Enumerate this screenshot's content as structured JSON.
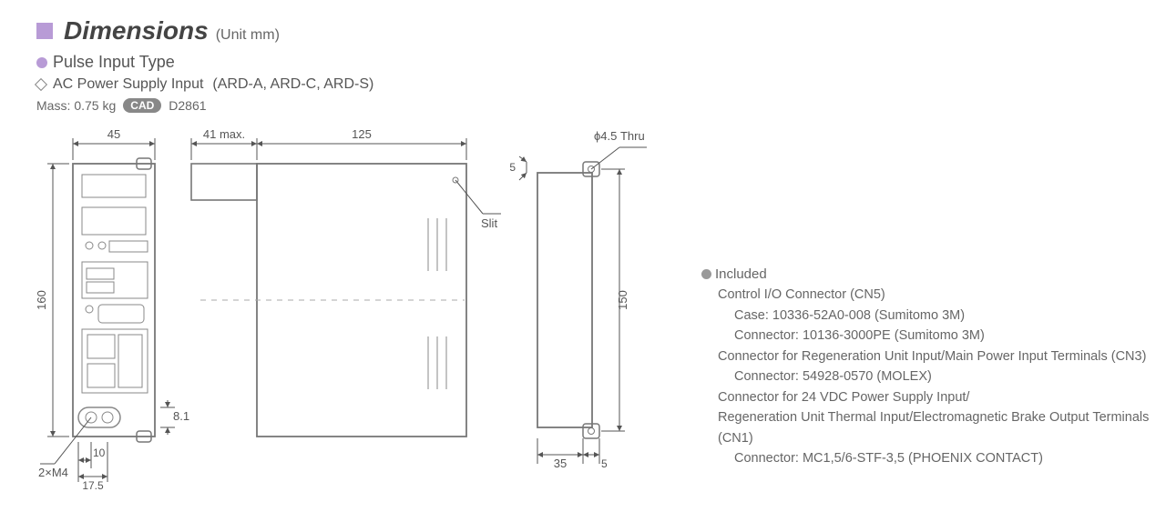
{
  "header": {
    "title": "Dimensions",
    "unit": "(Unit mm)"
  },
  "sub1": "Pulse Input Type",
  "sub2": {
    "label": "AC Power Supply Input",
    "models": "(ARD-A, ARD-C, ARD-S)"
  },
  "mass": {
    "label": "Mass:",
    "value": "0.75 kg",
    "cad": "CAD",
    "code": "D2861"
  },
  "dims": {
    "front_w": "45",
    "side_depth": "41 max.",
    "side_len": "125",
    "front_h": "160",
    "back_h": "150",
    "back_w": "35",
    "back_tab": "5",
    "tab_h": "8.1",
    "hole_off": "10",
    "hole_pitch": "17.5",
    "hole_note": "2×M4",
    "slit": "Slit",
    "thru": "ϕ4.5 Thru",
    "top_off": "5"
  },
  "included": {
    "title": "Included",
    "lines": [
      {
        "t": "Control I/O Connector (CN5)",
        "lvl": 1
      },
      {
        "t": "Case: 10336-52A0-008 (Sumitomo 3M)",
        "lvl": 2
      },
      {
        "t": "Connector: 10136-3000PE (Sumitomo 3M)",
        "lvl": 2
      },
      {
        "t": "Connector for Regeneration Unit Input/Main Power Input Terminals (CN3)",
        "lvl": 1
      },
      {
        "t": "Connector: 54928-0570 (MOLEX)",
        "lvl": 2
      },
      {
        "t": "Connector for 24 VDC Power Supply Input/",
        "lvl": 1
      },
      {
        "t": "Regeneration Unit Thermal Input/Electromagnetic Brake Output Terminals",
        "lvl": 1
      },
      {
        "t": "(CN1)",
        "lvl": 1
      },
      {
        "t": "Connector: MC1,5/6-STF-3,5 (PHOENIX CONTACT)",
        "lvl": 2
      }
    ]
  },
  "style": {
    "colors": {
      "accent": "#b89bd6",
      "line": "#888888",
      "text": "#555555",
      "panel_border": "#777777",
      "dim_line": "#555555"
    },
    "font_dim": 13
  }
}
